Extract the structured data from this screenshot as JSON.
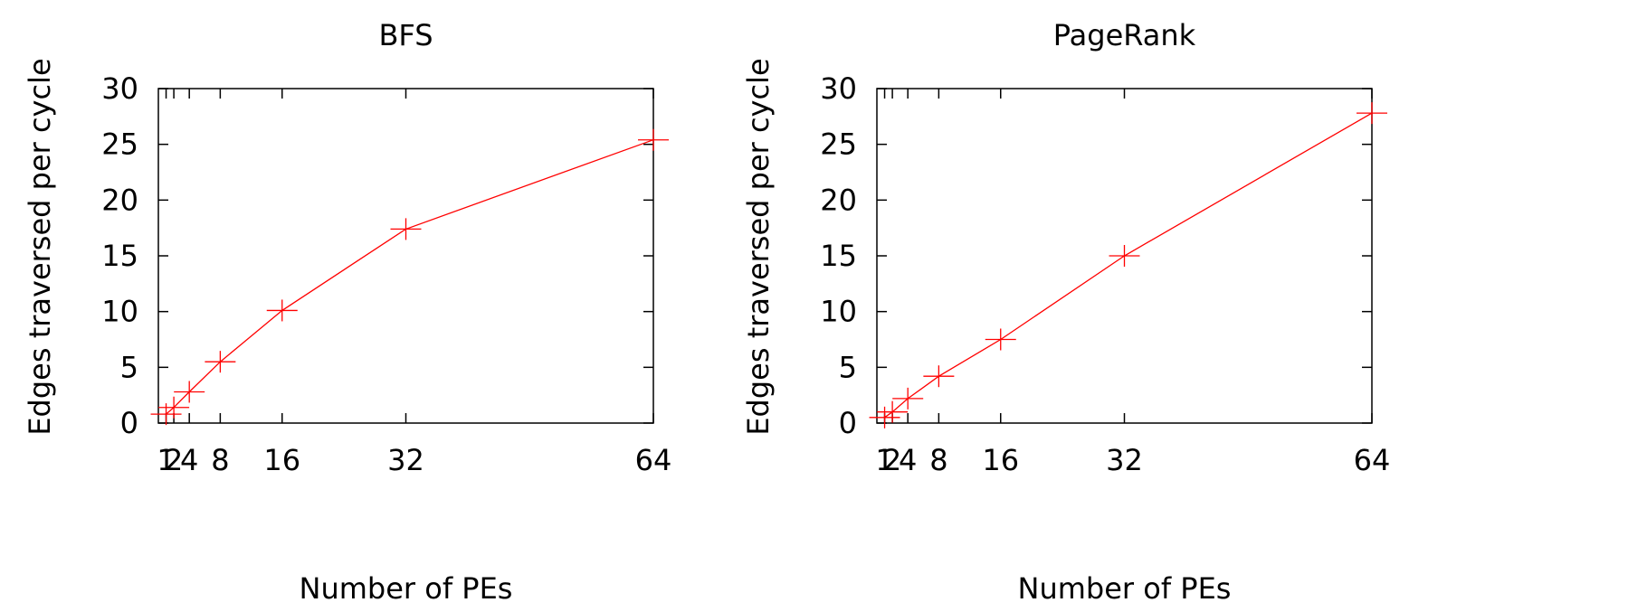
{
  "chart_data": [
    {
      "type": "line",
      "title": "BFS",
      "xlabel": "Number of PEs",
      "ylabel": "Edges traversed per cycle",
      "xlim": [
        0,
        64
      ],
      "ylim": [
        0,
        30
      ],
      "xticks": [
        1,
        2,
        4,
        8,
        16,
        32,
        64
      ],
      "yticks": [
        0,
        5,
        10,
        15,
        20,
        25,
        30
      ],
      "grid": false,
      "series": [
        {
          "color": "#ff0000",
          "marker": "plus",
          "x": [
            1,
            2,
            4,
            8,
            16,
            32,
            64
          ],
          "y": [
            0.8,
            1.4,
            2.8,
            5.5,
            10.1,
            17.4,
            25.4
          ]
        }
      ]
    },
    {
      "type": "line",
      "title": "PageRank",
      "xlabel": "Number of PEs",
      "ylabel": "Edges traversed per cycle",
      "xlim": [
        0,
        64
      ],
      "ylim": [
        0,
        30
      ],
      "xticks": [
        1,
        2,
        4,
        8,
        16,
        32,
        64
      ],
      "yticks": [
        0,
        5,
        10,
        15,
        20,
        25,
        30
      ],
      "grid": false,
      "series": [
        {
          "color": "#ff0000",
          "marker": "plus",
          "x": [
            1,
            2,
            4,
            8,
            16,
            32,
            64
          ],
          "y": [
            0.5,
            1.0,
            2.2,
            4.2,
            7.5,
            15.0,
            27.8
          ]
        }
      ]
    }
  ]
}
